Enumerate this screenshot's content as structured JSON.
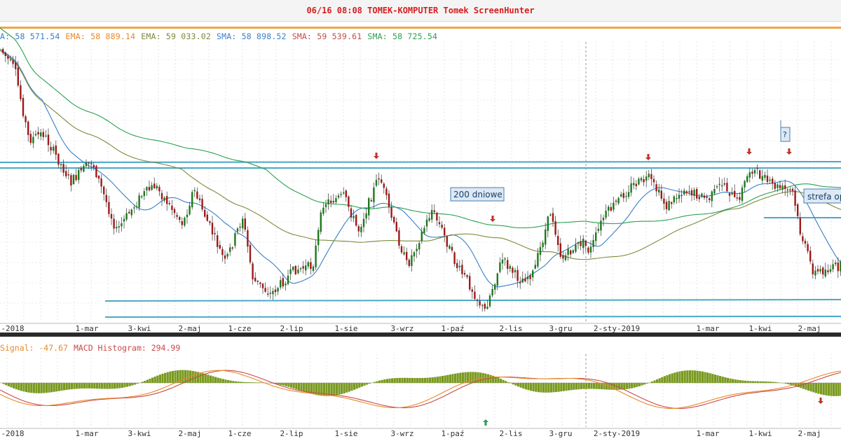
{
  "window": {
    "title": "06/16 08:08 TOMEK-KOMPUTER Tomek ScreenHunter"
  },
  "indicator_legend": [
    {
      "text": "A: 58 571.54",
      "color": "#3a7fc8"
    },
    {
      "text": "EMA: 58 889.14",
      "color": "#e8892a"
    },
    {
      "text": "EMA: 59 033.02",
      "color": "#7d8a3a"
    },
    {
      "text": "SMA: 58 898.52",
      "color": "#3a7fc8"
    },
    {
      "text": "SMA: 59 539.61",
      "color": "#c84a4a"
    },
    {
      "text": "SMA: 58 725.54",
      "color": "#2aa050"
    }
  ],
  "macd_legend": [
    {
      "text": "Signal: -47.67",
      "color": "#e8892a"
    },
    {
      "text": "MACD Histogram: 294.99",
      "color": "#c84a4a"
    }
  ],
  "annotations": {
    "ma200": "200 dniowe",
    "zone": "strefa op",
    "question": "?"
  },
  "colors": {
    "accent": "#f0a548",
    "title": "#d42020",
    "bull": "#1a7a1a",
    "bear": "#a01818",
    "support_line": "#4aa8c8",
    "histogram": "#7a9a20",
    "arrow_down": "#c0302a",
    "arrow_up": "#2aa050"
  },
  "chart_data": [
    {
      "type": "candlestick",
      "title": "",
      "x_axis_labels": [
        "-2018",
        "1-mar",
        "3-kwi",
        "2-maj",
        "1-cze",
        "2-lip",
        "1-sie",
        "3-wrz",
        "1-paź",
        "2-lis",
        "3-gru",
        "2-sty-2019",
        "1-mar",
        "1-kwi",
        "2-maj"
      ],
      "series": [
        {
          "name": "EMA",
          "value_label": "58 571.54"
        },
        {
          "name": "EMA",
          "value_label": "58 889.14"
        },
        {
          "name": "EMA",
          "value_label": "59 033.02"
        },
        {
          "name": "SMA",
          "value_label": "58 898.52"
        },
        {
          "name": "SMA",
          "value_label": "59 539.61"
        },
        {
          "name": "SMA",
          "value_label": "58 725.54"
        }
      ],
      "grid": true,
      "legend_placement": "top-left"
    },
    {
      "type": "line",
      "title": "",
      "x_axis_labels": [
        "-2018",
        "1-mar",
        "3-kwi",
        "2-maj",
        "1-cze",
        "2-lip",
        "1-sie",
        "3-wrz",
        "1-paź",
        "2-lis",
        "3-gru",
        "2-sty-2019",
        "1-mar",
        "1-kwi",
        "2-maj"
      ],
      "series": [
        {
          "name": "Signal",
          "value": -47.67
        },
        {
          "name": "MACD Histogram",
          "value": 294.99
        }
      ],
      "grid": true
    }
  ]
}
